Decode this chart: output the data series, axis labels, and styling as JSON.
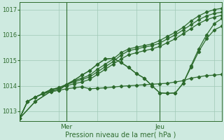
{
  "xlabel": "Pression niveau de la mer( hPa )",
  "background_color": "#ceeae0",
  "grid_color": "#a0c8b5",
  "line_color": "#2d6b2d",
  "ylim": [
    1012.6,
    1017.3
  ],
  "xlim": [
    0,
    52
  ],
  "mer_x": 12,
  "jeu_x": 36,
  "yticks": [
    1013,
    1014,
    1015,
    1016,
    1017
  ],
  "series": [
    {
      "points": [
        [
          0,
          1012.72
        ],
        [
          2,
          1013.38
        ],
        [
          4,
          1013.55
        ],
        [
          6,
          1013.7
        ],
        [
          8,
          1013.85
        ],
        [
          10,
          1013.92
        ],
        [
          12,
          1014.05
        ],
        [
          14,
          1014.2
        ],
        [
          16,
          1014.3
        ],
        [
          18,
          1014.42
        ],
        [
          20,
          1014.65
        ],
        [
          22,
          1014.85
        ],
        [
          24,
          1015.05
        ],
        [
          26,
          1015.3
        ],
        [
          28,
          1015.45
        ],
        [
          30,
          1015.52
        ],
        [
          32,
          1015.58
        ],
        [
          34,
          1015.65
        ],
        [
          36,
          1015.78
        ],
        [
          38,
          1015.95
        ],
        [
          40,
          1016.1
        ],
        [
          42,
          1016.3
        ],
        [
          44,
          1016.55
        ],
        [
          46,
          1016.75
        ],
        [
          48,
          1016.9
        ],
        [
          50,
          1017.0
        ],
        [
          52,
          1017.05
        ]
      ],
      "has_markers": true
    },
    {
      "points": [
        [
          0,
          1012.72
        ],
        [
          2,
          1013.38
        ],
        [
          4,
          1013.55
        ],
        [
          6,
          1013.7
        ],
        [
          8,
          1013.85
        ],
        [
          10,
          1013.92
        ],
        [
          12,
          1014.05
        ],
        [
          14,
          1014.15
        ],
        [
          16,
          1014.25
        ],
        [
          18,
          1014.35
        ],
        [
          20,
          1014.55
        ],
        [
          22,
          1014.75
        ],
        [
          24,
          1014.95
        ],
        [
          26,
          1015.2
        ],
        [
          28,
          1015.38
        ],
        [
          30,
          1015.45
        ],
        [
          32,
          1015.52
        ],
        [
          34,
          1015.58
        ],
        [
          36,
          1015.68
        ],
        [
          38,
          1015.85
        ],
        [
          40,
          1016.0
        ],
        [
          42,
          1016.2
        ],
        [
          44,
          1016.4
        ],
        [
          46,
          1016.6
        ],
        [
          48,
          1016.75
        ],
        [
          50,
          1016.85
        ],
        [
          52,
          1016.9
        ]
      ],
      "has_markers": true
    },
    {
      "points": [
        [
          0,
          1012.72
        ],
        [
          2,
          1013.38
        ],
        [
          4,
          1013.55
        ],
        [
          6,
          1013.7
        ],
        [
          8,
          1013.82
        ],
        [
          10,
          1013.88
        ],
        [
          12,
          1014.0
        ],
        [
          14,
          1014.08
        ],
        [
          16,
          1014.15
        ],
        [
          18,
          1014.25
        ],
        [
          20,
          1014.45
        ],
        [
          22,
          1014.65
        ],
        [
          24,
          1014.85
        ],
        [
          26,
          1015.05
        ],
        [
          28,
          1015.22
        ],
        [
          30,
          1015.3
        ],
        [
          32,
          1015.38
        ],
        [
          34,
          1015.45
        ],
        [
          36,
          1015.55
        ],
        [
          38,
          1015.7
        ],
        [
          40,
          1015.85
        ],
        [
          42,
          1016.05
        ],
        [
          44,
          1016.25
        ],
        [
          46,
          1016.45
        ],
        [
          48,
          1016.6
        ],
        [
          50,
          1016.7
        ],
        [
          52,
          1016.78
        ]
      ],
      "has_markers": true
    },
    {
      "points": [
        [
          0,
          1012.72
        ],
        [
          2,
          1013.38
        ],
        [
          4,
          1013.55
        ],
        [
          6,
          1013.68
        ],
        [
          8,
          1013.78
        ],
        [
          10,
          1013.82
        ],
        [
          12,
          1013.88
        ],
        [
          14,
          1013.92
        ],
        [
          16,
          1013.96
        ],
        [
          18,
          1013.88
        ],
        [
          20,
          1013.9
        ],
        [
          22,
          1013.92
        ],
        [
          24,
          1013.95
        ],
        [
          26,
          1013.98
        ],
        [
          28,
          1014.0
        ],
        [
          30,
          1014.02
        ],
        [
          32,
          1014.04
        ],
        [
          34,
          1014.06
        ],
        [
          36,
          1014.08
        ],
        [
          38,
          1014.1
        ],
        [
          40,
          1014.15
        ],
        [
          42,
          1014.2
        ],
        [
          44,
          1014.3
        ],
        [
          46,
          1014.35
        ],
        [
          48,
          1014.4
        ],
        [
          50,
          1014.42
        ],
        [
          52,
          1014.45
        ]
      ],
      "has_markers": true
    },
    {
      "points": [
        [
          0,
          1012.72
        ],
        [
          4,
          1013.38
        ],
        [
          8,
          1013.78
        ],
        [
          10,
          1013.82
        ],
        [
          12,
          1014.05
        ],
        [
          14,
          1014.22
        ],
        [
          16,
          1014.42
        ],
        [
          18,
          1014.6
        ],
        [
          20,
          1014.85
        ],
        [
          22,
          1015.05
        ],
        [
          24,
          1015.08
        ],
        [
          26,
          1014.92
        ],
        [
          28,
          1014.72
        ],
        [
          30,
          1014.48
        ],
        [
          32,
          1014.3
        ],
        [
          34,
          1014.0
        ],
        [
          36,
          1013.72
        ],
        [
          38,
          1013.7
        ],
        [
          40,
          1013.72
        ],
        [
          42,
          1014.1
        ],
        [
          44,
          1014.72
        ],
        [
          46,
          1015.35
        ],
        [
          48,
          1015.85
        ],
        [
          50,
          1016.2
        ],
        [
          52,
          1016.35
        ]
      ],
      "has_markers": true
    },
    {
      "points": [
        [
          0,
          1012.72
        ],
        [
          4,
          1013.38
        ],
        [
          8,
          1013.78
        ],
        [
          10,
          1013.82
        ],
        [
          12,
          1014.05
        ],
        [
          14,
          1014.22
        ],
        [
          16,
          1014.42
        ],
        [
          18,
          1014.6
        ],
        [
          20,
          1014.85
        ],
        [
          22,
          1015.05
        ],
        [
          24,
          1015.08
        ],
        [
          26,
          1014.92
        ],
        [
          28,
          1014.72
        ],
        [
          30,
          1014.48
        ],
        [
          32,
          1014.3
        ],
        [
          34,
          1014.0
        ],
        [
          36,
          1013.72
        ],
        [
          38,
          1013.7
        ],
        [
          40,
          1013.72
        ],
        [
          42,
          1014.1
        ],
        [
          44,
          1014.78
        ],
        [
          46,
          1015.45
        ],
        [
          48,
          1016.0
        ],
        [
          50,
          1016.45
        ],
        [
          52,
          1016.65
        ]
      ],
      "has_markers": true
    }
  ]
}
